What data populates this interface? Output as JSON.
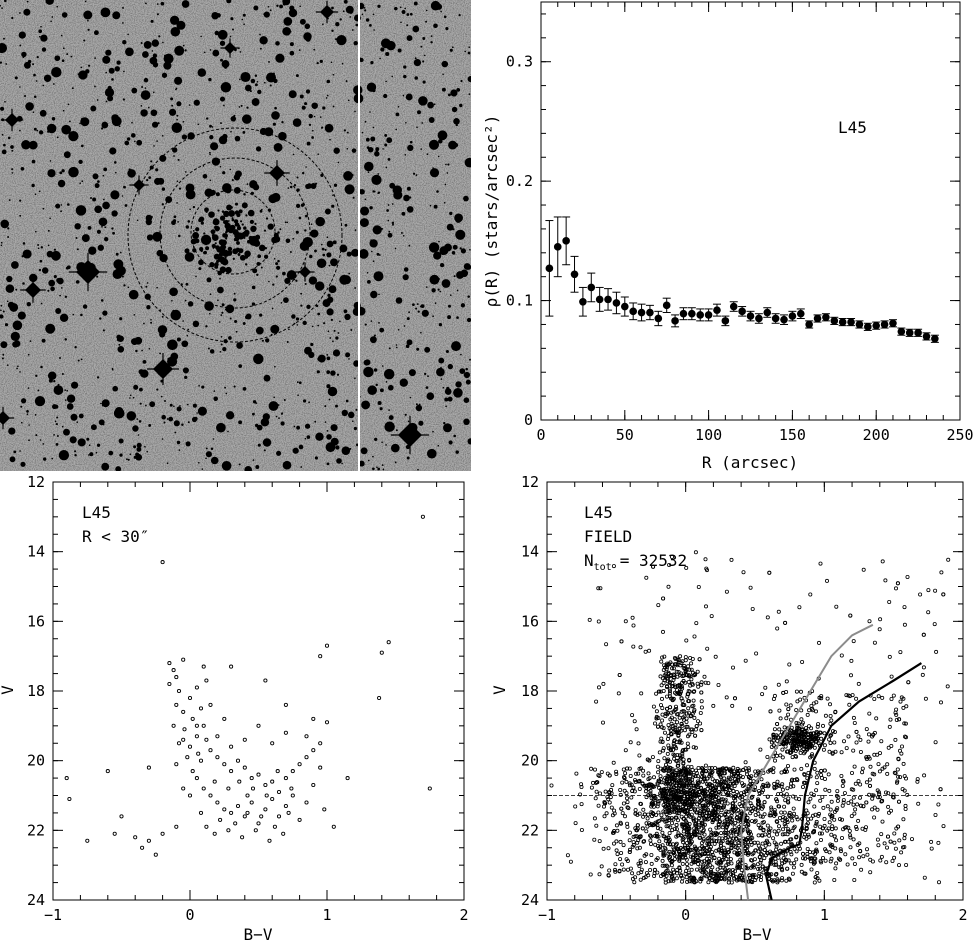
{
  "image_panel": {
    "description_icon": "star-field-image-with-concentric-circles",
    "background_color": "#a9a9a9"
  },
  "chart_data": [
    {
      "type": "scatter",
      "panel": "radial-density-profile",
      "xlabel": "R (arcsec)",
      "ylabel": "ρ(R) (stars/arcsec²)",
      "annotation": "L45",
      "xlim": [
        0,
        250
      ],
      "ylim": [
        0,
        0.35
      ],
      "xticks": [
        0,
        50,
        100,
        150,
        200,
        250
      ],
      "yticks": [
        0,
        0.1,
        0.2,
        0.3
      ],
      "ytick_labels": [
        "0",
        "0.1",
        "0.2",
        "0.3"
      ],
      "x": [
        5,
        10,
        15,
        20,
        25,
        30,
        35,
        40,
        45,
        50,
        55,
        60,
        65,
        70,
        75,
        80,
        85,
        90,
        95,
        100,
        105,
        110,
        115,
        120,
        125,
        130,
        135,
        140,
        145,
        150,
        155,
        160,
        165,
        170,
        175,
        180,
        185,
        190,
        195,
        200,
        205,
        210,
        215,
        220,
        225,
        230,
        235
      ],
      "y": [
        0.127,
        0.145,
        0.15,
        0.122,
        0.099,
        0.111,
        0.101,
        0.101,
        0.098,
        0.095,
        0.091,
        0.09,
        0.09,
        0.085,
        0.096,
        0.083,
        0.089,
        0.089,
        0.088,
        0.088,
        0.092,
        0.083,
        0.095,
        0.091,
        0.087,
        0.085,
        0.09,
        0.085,
        0.084,
        0.087,
        0.089,
        0.08,
        0.085,
        0.086,
        0.083,
        0.082,
        0.082,
        0.08,
        0.078,
        0.079,
        0.08,
        0.081,
        0.074,
        0.073,
        0.073,
        0.07,
        0.068
      ],
      "err": [
        0.04,
        0.025,
        0.02,
        0.015,
        0.012,
        0.012,
        0.01,
        0.009,
        0.009,
        0.008,
        0.007,
        0.007,
        0.006,
        0.006,
        0.006,
        0.005,
        0.005,
        0.005,
        0.005,
        0.005,
        0.005,
        0.004,
        0.004,
        0.004,
        0.004,
        0.004,
        0.004,
        0.004,
        0.004,
        0.004,
        0.004,
        0.003,
        0.003,
        0.003,
        0.003,
        0.003,
        0.003,
        0.003,
        0.003,
        0.003,
        0.003,
        0.003,
        0.003,
        0.003,
        0.003,
        0.003,
        0.003
      ]
    },
    {
      "type": "scatter",
      "panel": "cluster-cmd",
      "xlabel": "B−V",
      "ylabel": "V",
      "annotations": [
        "L45",
        "R < 30″"
      ],
      "xlim": [
        -1,
        2
      ],
      "ylim": [
        24,
        12
      ],
      "xticks": [
        -1,
        0,
        1,
        2
      ],
      "xtick_labels": [
        "−1",
        "0",
        "1",
        "2"
      ],
      "yticks": [
        12,
        14,
        16,
        18,
        20,
        22,
        24
      ],
      "points": [
        [
          -0.2,
          14.3
        ],
        [
          1.7,
          13.0
        ],
        [
          1.45,
          16.6
        ],
        [
          1.4,
          16.9
        ],
        [
          1.0,
          16.7
        ],
        [
          0.95,
          17.0
        ],
        [
          -0.9,
          20.5
        ],
        [
          -0.88,
          21.1
        ],
        [
          -0.75,
          22.3
        ],
        [
          1.15,
          20.5
        ],
        [
          1.75,
          20.8
        ],
        [
          1.38,
          18.2
        ],
        [
          -0.15,
          17.2
        ],
        [
          -0.12,
          17.4
        ],
        [
          -0.1,
          17.6
        ],
        [
          -0.05,
          17.1
        ],
        [
          0.1,
          17.3
        ],
        [
          -0.15,
          17.8
        ],
        [
          -0.08,
          18.0
        ],
        [
          0.0,
          18.2
        ],
        [
          0.05,
          17.9
        ],
        [
          0.12,
          17.7
        ],
        [
          -0.1,
          18.4
        ],
        [
          -0.05,
          18.6
        ],
        [
          0.02,
          18.8
        ],
        [
          0.08,
          18.5
        ],
        [
          -0.12,
          19.0
        ],
        [
          -0.04,
          19.1
        ],
        [
          0.05,
          19.3
        ],
        [
          0.1,
          19.0
        ],
        [
          -0.08,
          19.5
        ],
        [
          0.0,
          19.6
        ],
        [
          0.06,
          19.8
        ],
        [
          -0.02,
          19.9
        ],
        [
          0.12,
          19.4
        ],
        [
          0.15,
          19.7
        ],
        [
          0.2,
          19.9
        ],
        [
          0.25,
          20.1
        ],
        [
          0.3,
          20.3
        ],
        [
          0.35,
          20.0
        ],
        [
          0.4,
          20.2
        ],
        [
          0.45,
          20.5
        ],
        [
          0.5,
          20.4
        ],
        [
          0.55,
          20.7
        ],
        [
          0.6,
          20.6
        ],
        [
          0.65,
          20.9
        ],
        [
          0.7,
          20.5
        ],
        [
          0.75,
          20.3
        ],
        [
          0.8,
          20.1
        ],
        [
          0.85,
          19.9
        ],
        [
          0.9,
          19.7
        ],
        [
          0.95,
          19.5
        ],
        [
          0.7,
          19.2
        ],
        [
          0.6,
          19.5
        ],
        [
          0.5,
          19.0
        ],
        [
          0.4,
          19.4
        ],
        [
          0.3,
          19.6
        ],
        [
          0.05,
          20.5
        ],
        [
          0.1,
          20.8
        ],
        [
          0.15,
          21.0
        ],
        [
          0.2,
          21.2
        ],
        [
          0.25,
          21.4
        ],
        [
          0.3,
          21.5
        ],
        [
          0.35,
          21.3
        ],
        [
          0.4,
          21.6
        ],
        [
          0.45,
          21.2
        ],
        [
          0.5,
          21.8
        ],
        [
          0.55,
          21.4
        ],
        [
          0.6,
          21.1
        ],
        [
          0.65,
          21.6
        ],
        [
          0.7,
          21.3
        ],
        [
          0.75,
          21.0
        ],
        [
          0.8,
          21.7
        ],
        [
          0.85,
          21.2
        ],
        [
          0.0,
          21.0
        ],
        [
          -0.05,
          20.8
        ],
        [
          0.08,
          21.5
        ],
        [
          0.12,
          21.9
        ],
        [
          0.18,
          22.1
        ],
        [
          0.22,
          21.7
        ],
        [
          0.28,
          22.0
        ],
        [
          0.33,
          21.8
        ],
        [
          0.38,
          22.2
        ],
        [
          0.42,
          21.5
        ],
        [
          0.48,
          22.0
        ],
        [
          0.52,
          21.6
        ],
        [
          0.58,
          22.3
        ],
        [
          0.62,
          21.9
        ],
        [
          0.68,
          22.1
        ],
        [
          0.72,
          21.5
        ],
        [
          -0.1,
          21.9
        ],
        [
          -0.2,
          22.1
        ],
        [
          -0.3,
          22.3
        ],
        [
          -0.35,
          22.5
        ],
        [
          -0.25,
          22.7
        ],
        [
          -0.4,
          22.2
        ],
        [
          -0.5,
          21.6
        ],
        [
          -0.55,
          22.1
        ],
        [
          -0.6,
          20.3
        ],
        [
          -0.3,
          20.2
        ],
        [
          0.3,
          17.3
        ],
        [
          0.55,
          17.7
        ],
        [
          0.7,
          18.4
        ],
        [
          0.9,
          18.8
        ],
        [
          0.85,
          19.3
        ],
        [
          1.0,
          18.9
        ],
        [
          1.05,
          21.9
        ],
        [
          0.98,
          21.4
        ],
        [
          0.9,
          20.7
        ],
        [
          0.95,
          20.2
        ],
        [
          0.15,
          18.4
        ],
        [
          0.25,
          18.8
        ],
        [
          0.2,
          19.3
        ],
        [
          0.05,
          19.0
        ],
        [
          -0.05,
          19.4
        ],
        [
          -0.1,
          20.1
        ],
        [
          0.02,
          20.3
        ],
        [
          0.08,
          20.0
        ],
        [
          0.18,
          20.6
        ],
        [
          0.28,
          20.8
        ],
        [
          0.36,
          20.6
        ],
        [
          0.42,
          21.0
        ],
        [
          0.46,
          20.8
        ],
        [
          0.56,
          21.0
        ],
        [
          0.64,
          20.3
        ],
        [
          0.74,
          20.8
        ]
      ]
    },
    {
      "type": "scatter",
      "panel": "field-cmd",
      "xlabel": "B−V",
      "ylabel": "V",
      "annotations": [
        "L45",
        "FIELD",
        "N",
        "tot",
        "= 32532"
      ],
      "xlim": [
        -1,
        2
      ],
      "ylim": [
        24,
        12
      ],
      "xticks": [
        -1,
        0,
        1,
        2
      ],
      "xtick_labels": [
        "−1",
        "0",
        "1",
        "2"
      ],
      "yticks": [
        12,
        14,
        16,
        18,
        20,
        22,
        24
      ],
      "dashed_hline_V": 21.0,
      "point_count_drawn": 3200,
      "gray_isochrone": [
        [
          0.45,
          24.0
        ],
        [
          0.42,
          23.0
        ],
        [
          0.4,
          22.0
        ],
        [
          0.45,
          21.0
        ],
        [
          0.6,
          20.0
        ],
        [
          0.75,
          19.0
        ],
        [
          0.9,
          18.0
        ],
        [
          1.05,
          17.0
        ],
        [
          1.2,
          16.4
        ],
        [
          1.35,
          16.1
        ]
      ],
      "black_isochrone": [
        [
          0.62,
          24.0
        ],
        [
          0.58,
          23.3
        ],
        [
          0.62,
          22.8
        ],
        [
          0.75,
          22.5
        ],
        [
          0.82,
          22.4
        ],
        [
          0.84,
          21.9
        ],
        [
          0.86,
          21.0
        ],
        [
          0.92,
          20.0
        ],
        [
          1.05,
          19.0
        ],
        [
          1.25,
          18.3
        ],
        [
          1.5,
          17.7
        ],
        [
          1.7,
          17.2
        ]
      ]
    }
  ]
}
